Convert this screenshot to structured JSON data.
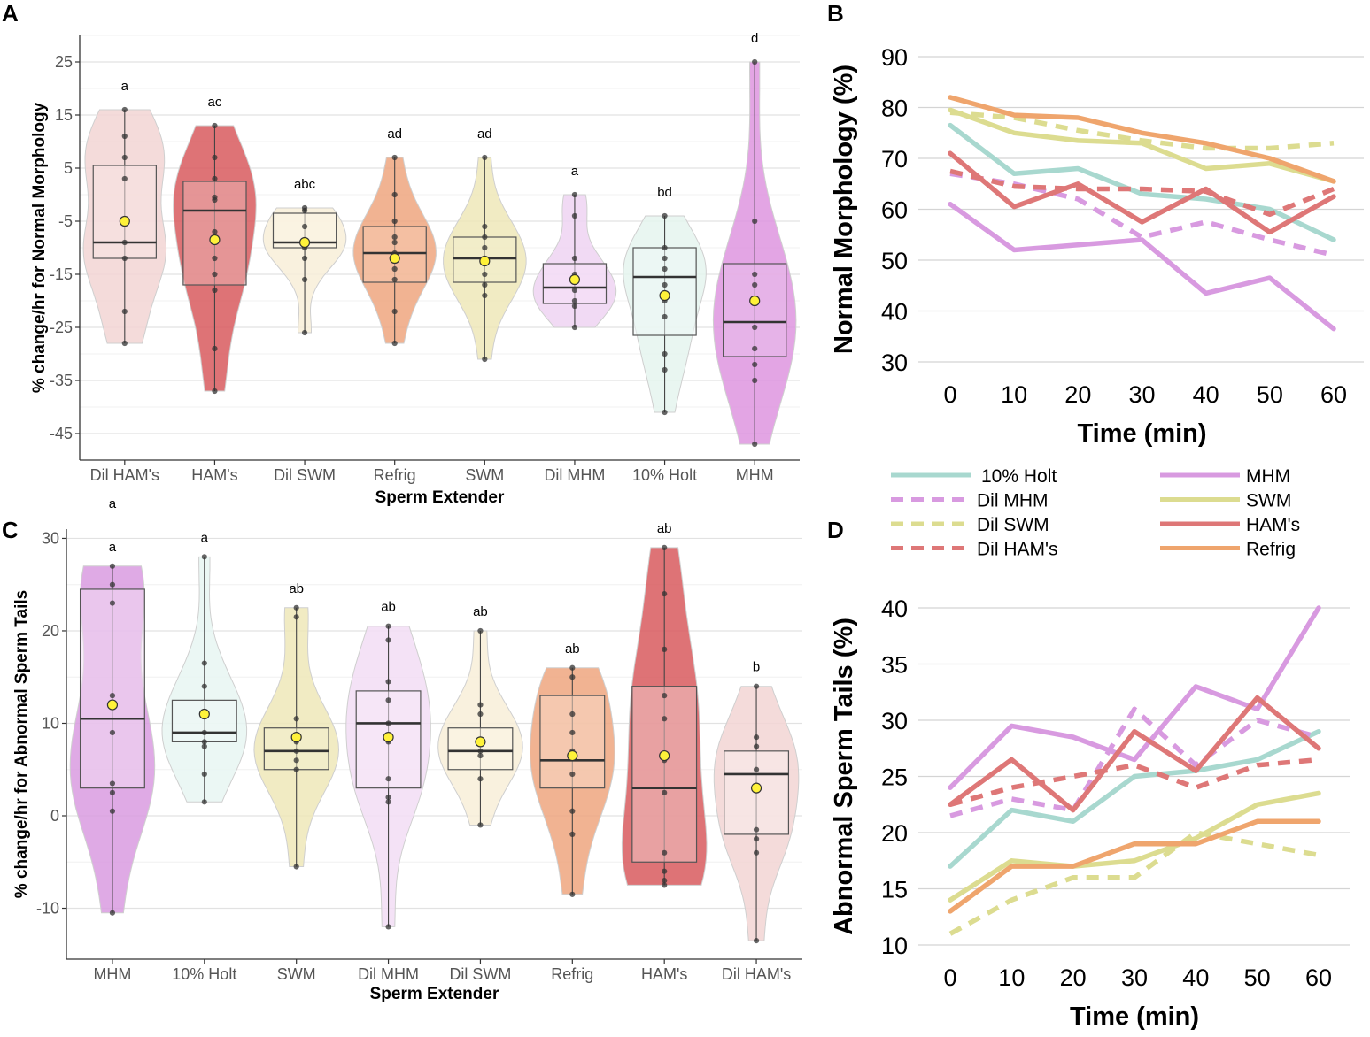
{
  "panels": {
    "A": "A",
    "B": "B",
    "C": "C",
    "D": "D"
  },
  "legend": {
    "items": [
      {
        "label": "10% Holt",
        "color": "#A8D8CF",
        "dashed": false
      },
      {
        "label": "Dil MHM",
        "color": "#D89AE0",
        "dashed": true
      },
      {
        "label": "Dil SWM",
        "color": "#DCDC90",
        "dashed": true
      },
      {
        "label": "Dil HAM's",
        "color": "#DE7777",
        "dashed": true
      },
      {
        "label": "MHM",
        "color": "#D89AE0",
        "dashed": false
      },
      {
        "label": "SWM",
        "color": "#DCDC90",
        "dashed": false
      },
      {
        "label": "HAM's",
        "color": "#DE7777",
        "dashed": false
      },
      {
        "label": "Refrig",
        "color": "#EFA56D",
        "dashed": false
      }
    ]
  },
  "chart_data": [
    {
      "id": "A",
      "type": "violin-box",
      "ylabel": "% change/hr for Normal Morphology",
      "xlabel": "Sperm Extender",
      "ylim": [
        -50,
        30
      ],
      "yticks": [
        "25",
        "15",
        "5",
        "-5",
        "-15",
        "-25",
        "-35",
        "-45"
      ],
      "ytick_values": [
        25,
        15,
        5,
        -5,
        -15,
        -25,
        -35,
        -45
      ],
      "groups": [
        {
          "name": "Dil HAM's",
          "color": "#F2D5D3",
          "boxfill": "#F7E4E3",
          "sig": "a",
          "q1": -12,
          "median": -9,
          "q3": 5.5,
          "mean": -5,
          "min": -28,
          "max": 16,
          "points": [
            16,
            11,
            7,
            3,
            -9,
            -12,
            -22,
            -28
          ]
        },
        {
          "name": "HAM's",
          "color": "#D85A5E",
          "boxfill": "#EBB1B1",
          "sig": "ac",
          "q1": -17,
          "median": -3,
          "q3": 2.5,
          "mean": -8.5,
          "min": -37,
          "max": 13,
          "points": [
            13,
            7,
            3,
            -0.5,
            -1,
            -7,
            -12,
            -15,
            -18,
            -29,
            -37
          ]
        },
        {
          "name": "Dil SWM",
          "color": "#F8EFD8",
          "boxfill": "#FBF4E6",
          "sig": "abc",
          "q1": -10,
          "median": -9,
          "q3": -3.5,
          "mean": -9,
          "min": -26,
          "max": -2.5,
          "points": [
            -2.5,
            -3,
            -6,
            -9,
            -10,
            -12,
            -16,
            -26
          ]
        },
        {
          "name": "Refrig",
          "color": "#EFA67F",
          "boxfill": "#F5C9AE",
          "sig": "ad",
          "q1": -16.5,
          "median": -11,
          "q3": -6,
          "mean": -12,
          "min": -28,
          "max": 7,
          "points": [
            7,
            0,
            -5,
            -8,
            -9,
            -11,
            -12,
            -14,
            -16,
            -22,
            -28
          ]
        },
        {
          "name": "SWM",
          "color": "#EEE8B8",
          "boxfill": "#F3EFCD",
          "sig": "ad",
          "q1": -16.5,
          "median": -12,
          "q3": -8,
          "mean": -12.5,
          "min": -31,
          "max": 7,
          "points": [
            7,
            -6,
            -8,
            -10,
            -13,
            -15,
            -17,
            -19,
            -31
          ]
        },
        {
          "name": "Dil MHM",
          "color": "#EFD3F2",
          "boxfill": "#F5E2F7",
          "sig": "a",
          "q1": -20.5,
          "median": -17.5,
          "q3": -13,
          "mean": -16,
          "min": -25,
          "max": 0,
          "points": [
            0,
            -4,
            -12,
            -15,
            -18,
            -20,
            -21,
            -25
          ]
        },
        {
          "name": "10% Holt",
          "color": "#E5F4EF",
          "boxfill": "#EEF8F5",
          "sig": "bd",
          "q1": -26.5,
          "median": -15.5,
          "q3": -10,
          "mean": -19,
          "min": -41,
          "max": -4,
          "points": [
            -4,
            -10,
            -12,
            -14,
            -17,
            -20,
            -23,
            -30,
            -33,
            -41
          ]
        },
        {
          "name": "MHM",
          "color": "#DE95DF",
          "boxfill": "#EAC0EB",
          "sig": "d",
          "q1": -30.5,
          "median": -24,
          "q3": -13,
          "mean": -20,
          "min": -47,
          "max": 25,
          "points": [
            25,
            -5,
            -15,
            -17,
            -20,
            -25,
            -29,
            -32,
            -35,
            -47
          ]
        }
      ]
    },
    {
      "id": "B",
      "type": "line",
      "ylabel": "Normal Morphology (%)",
      "xlabel": "Time (min)",
      "x": [
        0,
        10,
        20,
        30,
        40,
        50,
        60
      ],
      "ylim": [
        30,
        90
      ],
      "yticks": [
        "90",
        "80",
        "70",
        "60",
        "50",
        "40",
        "30"
      ],
      "ytick_values": [
        90,
        80,
        70,
        60,
        50,
        40,
        30
      ],
      "xticks": [
        "0",
        "10",
        "20",
        "30",
        "40",
        "50",
        "60"
      ],
      "series": [
        {
          "name": "10% Holt",
          "color": "#A8D8CF",
          "dashed": false,
          "values": [
            76.5,
            67,
            68,
            63,
            62,
            60,
            54
          ]
        },
        {
          "name": "Dil MHM",
          "color": "#D89AE0",
          "dashed": true,
          "values": [
            67,
            65,
            62,
            54.5,
            57.5,
            54,
            51
          ]
        },
        {
          "name": "Dil SWM",
          "color": "#DCDC90",
          "dashed": true,
          "values": [
            79,
            78,
            75.5,
            73.5,
            72,
            72,
            73
          ]
        },
        {
          "name": "Dil HAM's",
          "color": "#DE7777",
          "dashed": true,
          "values": [
            67.5,
            64.5,
            64,
            64,
            63.5,
            59,
            64
          ]
        },
        {
          "name": "MHM",
          "color": "#D89AE0",
          "dashed": false,
          "values": [
            61,
            52,
            53,
            54,
            43.5,
            46.5,
            36.5
          ]
        },
        {
          "name": "SWM",
          "color": "#DCDC90",
          "dashed": false,
          "values": [
            79.5,
            75,
            73.5,
            73,
            68,
            69,
            65.5
          ]
        },
        {
          "name": "HAM's",
          "color": "#DE7777",
          "dashed": false,
          "values": [
            71,
            60.5,
            65,
            57.5,
            64,
            55.5,
            62.5
          ]
        },
        {
          "name": "Refrig",
          "color": "#EFA56D",
          "dashed": false,
          "values": [
            82,
            78.5,
            78,
            75,
            73,
            70,
            65.5
          ]
        }
      ]
    },
    {
      "id": "C",
      "type": "violin-box",
      "ylabel": "% change/hr for Abnormal Sperm Tails",
      "xlabel": "Sperm Extender",
      "ylim": [
        -15.5,
        31
      ],
      "yticks": [
        "30",
        "20",
        "10",
        "0",
        "-10"
      ],
      "ytick_values": [
        30,
        20,
        10,
        0,
        -10
      ],
      "extra_sig": "a",
      "groups": [
        {
          "name": "MHM",
          "color": "#D99BE0",
          "boxfill": "#F2DCF4",
          "sig": "a",
          "q1": 3,
          "median": 10.5,
          "q3": 24.5,
          "mean": 12,
          "min": -10.5,
          "max": 27,
          "points": [
            27,
            25,
            23,
            13,
            9,
            3.5,
            2.5,
            0.5,
            -10.5
          ]
        },
        {
          "name": "10% Holt",
          "color": "#E8F6F2",
          "boxfill": "#EEF8F5",
          "sig": "a",
          "q1": 8,
          "median": 9,
          "q3": 12.5,
          "mean": 11,
          "min": 1.5,
          "max": 28,
          "points": [
            28,
            16.5,
            14,
            11,
            9,
            8,
            7.5,
            4.5,
            1.5
          ]
        },
        {
          "name": "SWM",
          "color": "#EEE8B8",
          "boxfill": "#F3EFCD",
          "sig": "ab",
          "q1": 5,
          "median": 7,
          "q3": 9.5,
          "mean": 8.5,
          "min": -5.5,
          "max": 22.5,
          "points": [
            22.5,
            21.5,
            10.5,
            8,
            7,
            6,
            5,
            -5.5
          ]
        },
        {
          "name": "Dil MHM",
          "color": "#F2DDF4",
          "boxfill": "#F7EAF8",
          "sig": "ab",
          "q1": 3,
          "median": 10,
          "q3": 13.5,
          "mean": 8.5,
          "min": -12,
          "max": 20.5,
          "points": [
            20.5,
            19,
            14.5,
            12.5,
            10,
            8,
            4,
            2,
            1.5,
            -12
          ]
        },
        {
          "name": "Dil SWM",
          "color": "#F8EFD8",
          "boxfill": "#FBF4E6",
          "sig": "ab",
          "q1": 5,
          "median": 7,
          "q3": 9.5,
          "mean": 8,
          "min": -1,
          "max": 20,
          "points": [
            20,
            12,
            11,
            8,
            7,
            6.5,
            4,
            -1
          ]
        },
        {
          "name": "Refrig",
          "color": "#EFA67F",
          "boxfill": "#F8D9C6",
          "sig": "ab",
          "q1": 3,
          "median": 6,
          "q3": 13,
          "mean": 6.5,
          "min": -8.5,
          "max": 16,
          "points": [
            16,
            15,
            11,
            9,
            7,
            4.5,
            0.5,
            -2,
            -8.5
          ]
        },
        {
          "name": "HAM's",
          "color": "#D85A5E",
          "boxfill": "#F0C7C7",
          "sig": "ab",
          "q1": -5,
          "median": 3,
          "q3": 14,
          "mean": 6.5,
          "min": -7.5,
          "max": 29,
          "points": [
            29,
            24,
            18,
            13,
            10.5,
            6,
            2.5,
            -4,
            -6,
            -7,
            -7.5
          ]
        },
        {
          "name": "Dil HAM's",
          "color": "#F2D5D3",
          "boxfill": "#FAEDEC",
          "sig": "b",
          "q1": -2,
          "median": 4.5,
          "q3": 7,
          "mean": 3,
          "min": -13.5,
          "max": 14,
          "points": [
            14,
            8.5,
            7.5,
            5,
            3,
            -1.5,
            -2.5,
            -4,
            -13.5
          ]
        }
      ]
    },
    {
      "id": "D",
      "type": "line",
      "ylabel": "Abnormal Sperm Tails (%)",
      "xlabel": "Time (min)",
      "x": [
        0,
        10,
        20,
        30,
        40,
        50,
        60
      ],
      "ylim": [
        10,
        40
      ],
      "yticks": [
        "40",
        "35",
        "30",
        "25",
        "20",
        "15",
        "10"
      ],
      "ytick_values": [
        40,
        35,
        30,
        25,
        20,
        15,
        10
      ],
      "xticks": [
        "0",
        "10",
        "20",
        "30",
        "40",
        "50",
        "60"
      ],
      "series": [
        {
          "name": "10% Holt",
          "color": "#A8D8CF",
          "dashed": false,
          "values": [
            17,
            22,
            21,
            25,
            25.5,
            26.5,
            29
          ]
        },
        {
          "name": "Dil MHM",
          "color": "#D89AE0",
          "dashed": true,
          "values": [
            21.5,
            23,
            22,
            31,
            26,
            30,
            28.5
          ]
        },
        {
          "name": "Dil SWM",
          "color": "#DCDC90",
          "dashed": true,
          "values": [
            11,
            14,
            16,
            16,
            20,
            19,
            18
          ]
        },
        {
          "name": "Dil HAM's",
          "color": "#DE7777",
          "dashed": true,
          "values": [
            22.5,
            24,
            25,
            26,
            24,
            26,
            26.5
          ]
        },
        {
          "name": "MHM",
          "color": "#D89AE0",
          "dashed": false,
          "values": [
            24,
            29.5,
            28.5,
            26.5,
            33,
            31,
            40
          ]
        },
        {
          "name": "SWM",
          "color": "#DCDC90",
          "dashed": false,
          "values": [
            14,
            17.5,
            17,
            17.5,
            19.5,
            22.5,
            23.5
          ]
        },
        {
          "name": "HAM's",
          "color": "#DE7777",
          "dashed": false,
          "values": [
            22.5,
            26.5,
            22,
            29,
            25.5,
            32,
            27.5
          ]
        },
        {
          "name": "Refrig",
          "color": "#EFA56D",
          "dashed": false,
          "values": [
            13,
            17,
            17,
            19,
            19,
            21,
            21
          ]
        }
      ]
    }
  ]
}
